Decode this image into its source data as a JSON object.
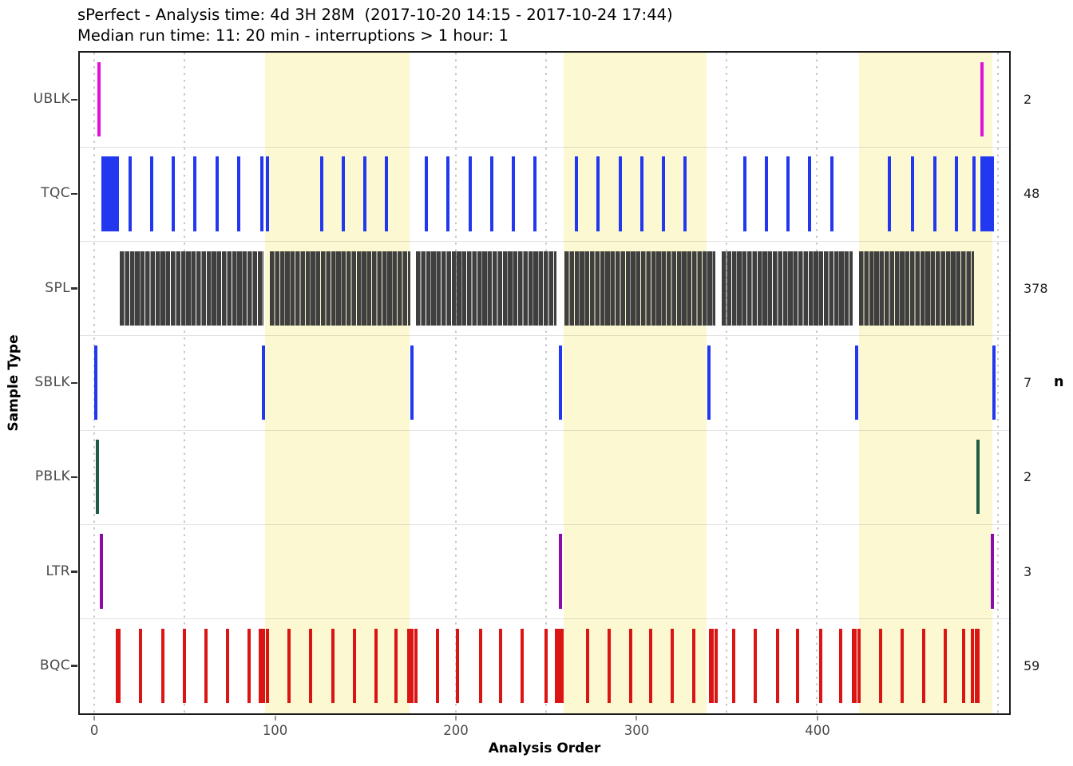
{
  "header": {
    "line1": "sPerfect - Analysis time: 4d 3H 28M  (2017-10-20 14:15 - 2017-10-24 17:44)",
    "line2": "Median run time: 11: 20 min - interruptions > 1 hour: 1"
  },
  "chart_data": {
    "type": "event-tick-timeline",
    "title": "sPerfect - Analysis time: 4d 3H 28M  (2017-10-20 14:15 - 2017-10-24 17:44)",
    "subtitle": "Median run time: 11: 20 min - interruptions > 1 hour: 1",
    "xlabel": "Analysis Order",
    "ylabel": "Sample Type",
    "right_axis_label": "n",
    "xlim": [
      -8,
      506
    ],
    "x_ticks": [
      0,
      100,
      200,
      300,
      400
    ],
    "x_minor_gridlines": [
      0,
      50,
      100,
      150,
      200,
      250,
      300,
      350,
      400,
      450,
      500
    ],
    "grid_style": "dotted-vertical",
    "legend": "none",
    "categories": [
      "UBLK",
      "TQC",
      "SPL",
      "SBLK",
      "PBLK",
      "LTR",
      "BQC"
    ],
    "counts": [
      2,
      48,
      378,
      7,
      2,
      3,
      59
    ],
    "highlight_bands": [
      [
        94.5,
        174.5
      ],
      [
        260,
        339
      ],
      [
        423,
        497
      ]
    ],
    "band_color": "#fcf8d2",
    "series": [
      {
        "name": "UBLK",
        "color": "#df10dc",
        "ticks": [
          3,
          491
        ],
        "runs": []
      },
      {
        "name": "TQC",
        "color": "#2137f0",
        "ticks": [
          20,
          32,
          44,
          56,
          68,
          80,
          93,
          96,
          126,
          138,
          150,
          162,
          184,
          196,
          208,
          220,
          232,
          244,
          267,
          279,
          291,
          303,
          315,
          327,
          360,
          372,
          384,
          396,
          408,
          440,
          453,
          465,
          477,
          487
        ],
        "runs": [
          [
            5,
            13
          ],
          [
            491,
            497
          ]
        ]
      },
      {
        "name": "SPL",
        "color": "#3f3f3f",
        "striped": true,
        "ticks": [],
        "runs": [
          [
            15,
            93
          ],
          [
            98,
            174
          ],
          [
            179,
            255
          ],
          [
            261,
            343
          ],
          [
            348,
            419
          ],
          [
            424,
            486
          ]
        ]
      },
      {
        "name": "SBLK",
        "color": "#2137f0",
        "ticks": [
          1,
          94,
          176,
          258,
          340,
          422,
          498
        ],
        "runs": []
      },
      {
        "name": "PBLK",
        "color": "#1e5c45",
        "ticks": [
          2,
          489
        ],
        "runs": []
      },
      {
        "name": "LTR",
        "color": "#8a0da8",
        "ticks": [
          4,
          258,
          497
        ],
        "runs": []
      },
      {
        "name": "BQC",
        "color": "#db1414",
        "ticks": [
          13,
          14,
          26,
          38,
          50,
          62,
          74,
          86,
          92,
          94,
          96,
          108,
          120,
          132,
          144,
          156,
          167,
          174,
          176,
          178,
          190,
          201,
          214,
          225,
          237,
          250,
          256,
          257,
          259,
          273,
          285,
          297,
          308,
          320,
          332,
          341,
          342,
          344,
          354,
          366,
          378,
          389,
          402,
          413,
          420,
          421,
          423,
          435,
          447,
          459,
          471,
          481,
          486,
          488,
          489
        ],
        "runs": []
      }
    ]
  }
}
